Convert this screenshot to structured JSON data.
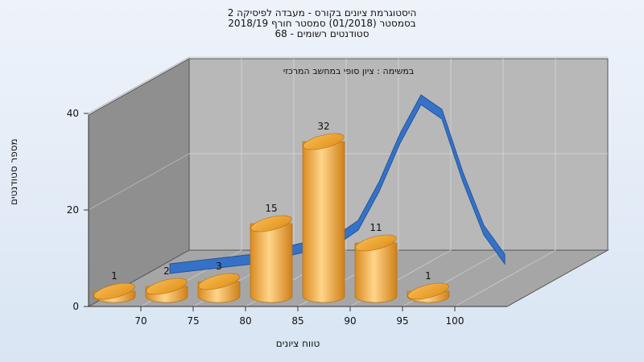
{
  "title_lines": [
    "היסטוגרמת ציונים בקורס - מעבדה לפיסיקה 2",
    "בסמסטר  (01/2018)  סמסטר חורף  2018/19",
    "סטודנטים רשומים - 68"
  ],
  "panel_subtitle": "במשימה : ציון סופי במחשב המרכזי",
  "colors": {
    "bar": "#f0a83a",
    "curve": "#2f6fc9",
    "back_wall": "#b8b8b8",
    "side_wall": "#8f8f8f",
    "floor": "#a6a6a6"
  },
  "chart_data": {
    "type": "bar",
    "categories": [
      "70",
      "75",
      "80",
      "85",
      "90",
      "95",
      "100"
    ],
    "bars": [
      {
        "label": "<70",
        "value": 1
      },
      {
        "label": "70-75",
        "value": 2
      },
      {
        "label": "75-80",
        "value": 3
      },
      {
        "label": "80-85",
        "value": 15
      },
      {
        "label": "85-90",
        "value": 32
      },
      {
        "label": "90-95",
        "value": 11
      },
      {
        "label": "95-100",
        "value": 1
      }
    ],
    "curve": [
      {
        "x": 68,
        "y": 1
      },
      {
        "x": 72,
        "y": 2
      },
      {
        "x": 76,
        "y": 3
      },
      {
        "x": 80,
        "y": 5
      },
      {
        "x": 84,
        "y": 7
      },
      {
        "x": 86,
        "y": 10
      },
      {
        "x": 88,
        "y": 18
      },
      {
        "x": 90,
        "y": 28
      },
      {
        "x": 92,
        "y": 36
      },
      {
        "x": 94,
        "y": 33
      },
      {
        "x": 96,
        "y": 20
      },
      {
        "x": 98,
        "y": 9
      },
      {
        "x": 100,
        "y": 3
      }
    ],
    "yticks": [
      0,
      20,
      40
    ],
    "ylim": [
      0,
      40
    ],
    "xlabel": "טווח ציונים",
    "ylabel": "מספר סטודנטים",
    "grid": true
  }
}
